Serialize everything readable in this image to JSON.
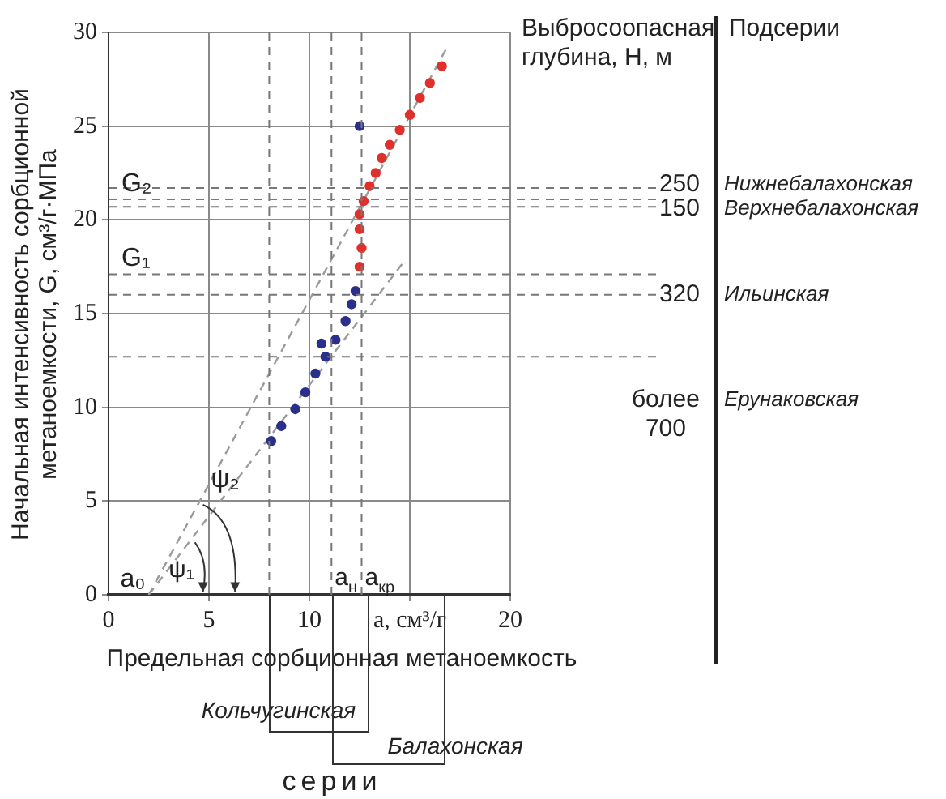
{
  "chart_data": {
    "type": "scatter",
    "xlabel": "Предельная сорбционная метаноемкость",
    "ylabel": "Начальная интенсивность сорбционной метаноемкости, G, см³/г·МПа",
    "xlim": [
      0,
      20
    ],
    "ylim": [
      0,
      30
    ],
    "xticks": [
      0,
      5,
      10,
      {
        "value": 15,
        "label": "a, см³/г"
      },
      20
    ],
    "yticks": [
      0,
      5,
      10,
      15,
      20,
      25,
      30
    ],
    "grid": true,
    "legend": false,
    "marker": "circle",
    "series": [
      {
        "color": "#2b2f8c",
        "x": [
          8.1,
          8.6,
          9.3,
          9.8,
          10.3,
          10.6,
          10.8,
          11.3,
          11.8,
          12.1,
          12.3,
          12.5
        ],
        "values": [
          8.2,
          9.0,
          9.9,
          10.8,
          11.8,
          13.4,
          12.7,
          13.6,
          14.6,
          15.5,
          16.2,
          25.0
        ]
      },
      {
        "color": "#e0302c",
        "x": [
          12.5,
          12.6,
          12.5,
          12.5,
          12.7,
          13.0,
          13.3,
          13.6,
          14.0,
          14.5,
          15.0,
          15.5,
          16.0,
          16.6
        ],
        "values": [
          17.5,
          18.5,
          19.5,
          20.3,
          21.0,
          21.8,
          22.5,
          23.3,
          24.0,
          24.8,
          25.6,
          26.5,
          27.3,
          28.2
        ]
      },
      {
        "type": "line",
        "color": "#9a9a9a",
        "line_style": "dashed",
        "marker": "none",
        "x": [
          2,
          16.9
        ],
        "values": [
          0,
          29.3
        ]
      },
      {
        "type": "line",
        "color": "#9a9a9a",
        "line_style": "dashed",
        "marker": "none",
        "x": [
          2,
          14.8
        ],
        "values": [
          0,
          17.9
        ]
      }
    ],
    "ref_lines": [
      {
        "axis": "y",
        "value": 21.7
      },
      {
        "axis": "y",
        "value": 20.7
      },
      {
        "axis": "y",
        "value": 16
      },
      {
        "axis": "y",
        "value": 12.7
      },
      {
        "axis": "y",
        "value": 21.1,
        "label": "G₂"
      },
      {
        "axis": "y",
        "value": 17.1,
        "label": "G₁"
      },
      {
        "axis": "x",
        "value": 8
      },
      {
        "axis": "x",
        "value": 11.1,
        "label": "a$_{н}$"
      },
      {
        "axis": "x",
        "value": 12.6,
        "label": "a$_{кр}$"
      }
    ],
    "annotations": [
      "Выбросоопасная глубина, H, м",
      "Подсерии",
      "250",
      "Нижнебалахонская",
      "150",
      "Верхнебалахонская",
      "320",
      "Ильинская",
      "более 700",
      "Ерунаковская",
      "ψ₁",
      {
        "text": "ψ₂",
        "x": 4.7,
        "y": 5.3
      },
      "Кольчугинская",
      "Балахонская",
      "серии",
      {
        "text": "a₀",
        "x": 2,
        "y": 0
      }
    ]
  }
}
